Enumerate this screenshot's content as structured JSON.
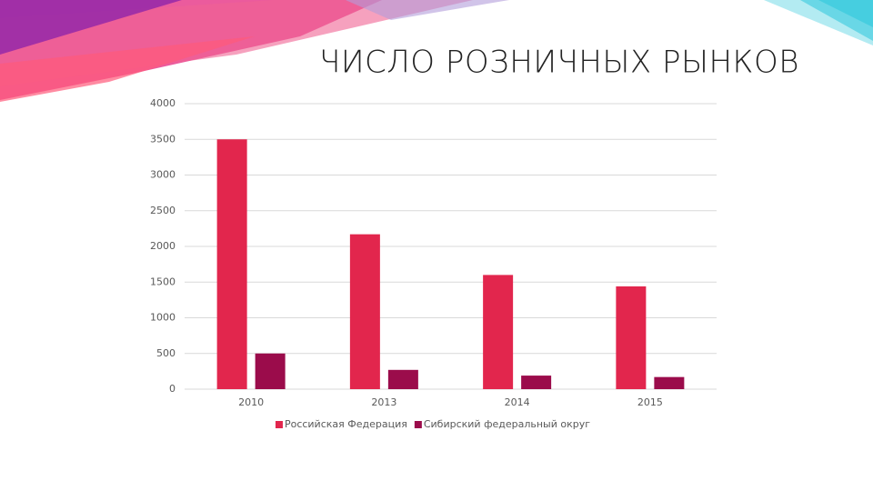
{
  "chart_data": {
    "type": "bar",
    "title": "ЧИСЛО РОЗНИЧНЫХ РЫНКОВ",
    "categories": [
      "2010",
      "2013",
      "2014",
      "2015"
    ],
    "series": [
      {
        "name": "Российская Федерация",
        "color": "#e2264d",
        "values": [
          3500,
          2170,
          1600,
          1440
        ]
      },
      {
        "name": "Сибирский федеральный округ",
        "color": "#9b0c4b",
        "values": [
          500,
          270,
          190,
          170
        ]
      }
    ],
    "ylim": [
      0,
      4000
    ],
    "yticks": [
      0,
      500,
      1000,
      1500,
      2000,
      2500,
      3000,
      3500,
      4000
    ],
    "grid": true,
    "legend": "bottom"
  }
}
